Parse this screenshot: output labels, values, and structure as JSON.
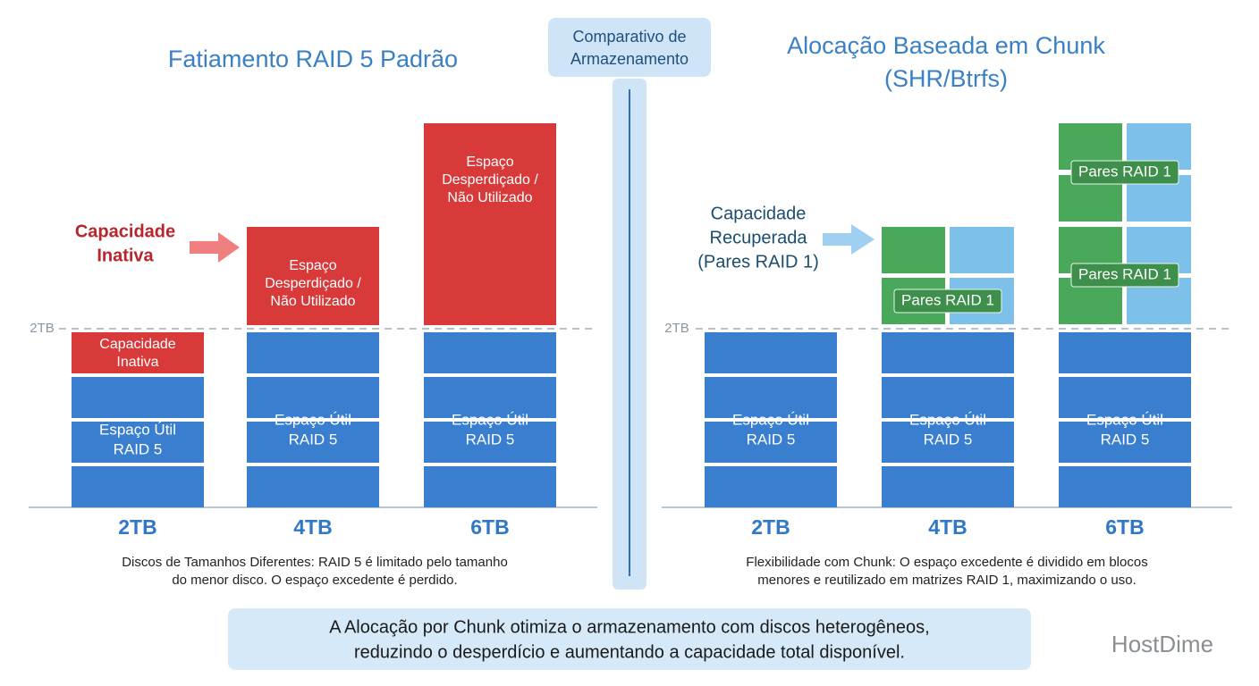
{
  "center_label": [
    "Comparativo de",
    "Armazenamento"
  ],
  "left": {
    "title": "Fatiamento RAID 5 Padrão",
    "threshold_label": "2TB",
    "callout": [
      "Capacidade",
      "Inativa"
    ],
    "disks": [
      {
        "size": "2TB",
        "top": [
          "Capacidade",
          "Inativa"
        ],
        "base": [
          "Espaço Útil",
          "RAID 5"
        ]
      },
      {
        "size": "4TB",
        "top": [
          "Espaço",
          "Desperdiçado /",
          "Não Utilizado"
        ],
        "base": [
          "Espaço Útil",
          "RAID 5"
        ]
      },
      {
        "size": "6TB",
        "top": [
          "Espaço",
          "Desperdiçado /",
          "Não Utilizado"
        ],
        "base": [
          "Espaço Útil",
          "RAID 5"
        ]
      }
    ],
    "caption": [
      "Discos de Tamanhos Diferentes: RAID 5 é limitado pelo tamanho",
      "do menor disco. O espaço excedente é perdido."
    ]
  },
  "right": {
    "title": [
      "Alocação Baseada em Chunk",
      "(SHR/Btrfs)"
    ],
    "threshold_label": "2TB",
    "callout": [
      "Capacidade",
      "Recuperada",
      "(Pares RAID 1)"
    ],
    "disks": [
      {
        "size": "2TB",
        "base": [
          "Espaço Útil",
          "RAID 5"
        ],
        "chunks": []
      },
      {
        "size": "4TB",
        "base": [
          "Espaço Útil",
          "RAID 5"
        ],
        "chunks": [
          "Pares RAID 1"
        ]
      },
      {
        "size": "6TB",
        "base": [
          "Espaço Útil",
          "RAID 5"
        ],
        "chunks": [
          "Pares RAID 1",
          "Pares RAID 1"
        ]
      }
    ],
    "caption": [
      "Flexibilidade com Chunk: O espaço excedente é dividido em blocos",
      "menores e reutilizado em matrizes RAID 1, maximizando o uso."
    ]
  },
  "footer": [
    "A Alocação por Chunk otimiza o armazenamento com discos heterogêneos,",
    "reduzindo o desperdício e aumentando a capacidade total disponível."
  ],
  "brand": "HostDime"
}
